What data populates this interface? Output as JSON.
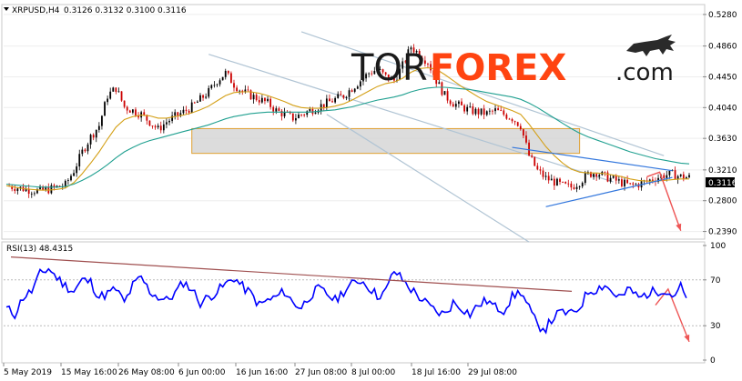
{
  "header": {
    "symbol": "XRPUSD,H4",
    "quote": "0.3126 0.3132 0.3100 0.3116",
    "current_price_tag": "0.3116"
  },
  "logo": {
    "part1": "TOR",
    "part2": "FOREX",
    "part3": ".com"
  },
  "rsi_header": "RSI(13) 48.4315",
  "colors": {
    "bull_candle": "#000000",
    "bear_candle": "#cc0000",
    "ma_fast": "#d4a017",
    "ma_slow": "#20a090",
    "rsi_line": "#0000ff",
    "rsi_trend": "#a05050",
    "channel": "#b0c4d4",
    "triangle": "#3377dd",
    "zone_fill": "#d0d0d0",
    "zone_border": "#e0a030",
    "arrow": "#ee5555",
    "logo_accent": "#ff4411"
  },
  "chart_data": [
    {
      "type": "line",
      "title": "XRPUSD,H4",
      "y_ticks": [
        "0.5280",
        "0.4860",
        "0.4450",
        "0.4040",
        "0.3630",
        "0.3210",
        "0.2800",
        "0.2390"
      ],
      "ylim": [
        0.23,
        0.54
      ],
      "x_ticks": [
        "5 May 2019",
        "15 May 16:00",
        "26 May 08:00",
        "6 Jun 00:00",
        "16 Jun 16:00",
        "27 Jun 08:00",
        "8 Jul 00:00",
        "18 Jul 16:00",
        "29 Jul 08:00"
      ],
      "series": [
        {
          "values": [
            0.3,
            0.298,
            0.296,
            0.294,
            0.293,
            0.295,
            0.298,
            0.301,
            0.32,
            0.345,
            0.365,
            0.38,
            0.42,
            0.43,
            0.405,
            0.4,
            0.395,
            0.385,
            0.375,
            0.385,
            0.392,
            0.398,
            0.405,
            0.415,
            0.425,
            0.44,
            0.45,
            0.435,
            0.425,
            0.42,
            0.415,
            0.41,
            0.4,
            0.395,
            0.39,
            0.395,
            0.4,
            0.405,
            0.41,
            0.415,
            0.42,
            0.43,
            0.44,
            0.45,
            0.455,
            0.445,
            0.44,
            0.46,
            0.485,
            0.475,
            0.465,
            0.44,
            0.42,
            0.41,
            0.405,
            0.4,
            0.398,
            0.396,
            0.4,
            0.395,
            0.39,
            0.38,
            0.34,
            0.32,
            0.31,
            0.305,
            0.3,
            0.298,
            0.305,
            0.315,
            0.318,
            0.312,
            0.308,
            0.304,
            0.3,
            0.302,
            0.306,
            0.31,
            0.314,
            0.315,
            0.312,
            0.311
          ]
        },
        {
          "name": "MA fast",
          "values": [
            0.3,
            0.298,
            0.296,
            0.295,
            0.294,
            0.294,
            0.295,
            0.297,
            0.304,
            0.316,
            0.33,
            0.345,
            0.362,
            0.378,
            0.388,
            0.392,
            0.394,
            0.393,
            0.39,
            0.39,
            0.392,
            0.394,
            0.397,
            0.401,
            0.406,
            0.413,
            0.42,
            0.424,
            0.425,
            0.425,
            0.423,
            0.42,
            0.416,
            0.412,
            0.407,
            0.404,
            0.403,
            0.403,
            0.404,
            0.406,
            0.409,
            0.414,
            0.42,
            0.426,
            0.432,
            0.436,
            0.438,
            0.443,
            0.451,
            0.456,
            0.457,
            0.455,
            0.448,
            0.44,
            0.432,
            0.425,
            0.418,
            0.412,
            0.408,
            0.404,
            0.4,
            0.395,
            0.382,
            0.367,
            0.352,
            0.34,
            0.33,
            0.322,
            0.318,
            0.317,
            0.317,
            0.316,
            0.314,
            0.312,
            0.309,
            0.307,
            0.306,
            0.306,
            0.307,
            0.308,
            0.309,
            0.309
          ]
        },
        {
          "name": "MA slow",
          "values": [
            0.302,
            0.301,
            0.3,
            0.299,
            0.298,
            0.298,
            0.298,
            0.299,
            0.302,
            0.307,
            0.313,
            0.32,
            0.328,
            0.337,
            0.345,
            0.351,
            0.356,
            0.36,
            0.363,
            0.366,
            0.369,
            0.372,
            0.375,
            0.378,
            0.381,
            0.385,
            0.389,
            0.392,
            0.394,
            0.396,
            0.397,
            0.398,
            0.398,
            0.398,
            0.398,
            0.398,
            0.398,
            0.399,
            0.4,
            0.401,
            0.403,
            0.405,
            0.408,
            0.411,
            0.414,
            0.416,
            0.418,
            0.421,
            0.425,
            0.428,
            0.43,
            0.431,
            0.431,
            0.43,
            0.429,
            0.428,
            0.426,
            0.424,
            0.422,
            0.42,
            0.418,
            0.415,
            0.41,
            0.404,
            0.397,
            0.39,
            0.383,
            0.376,
            0.37,
            0.365,
            0.361,
            0.357,
            0.353,
            0.349,
            0.345,
            0.342,
            0.339,
            0.336,
            0.334,
            0.332,
            0.33,
            0.329
          ]
        }
      ]
    },
    {
      "type": "line",
      "title": "RSI(13) 48.4315",
      "y_ticks": [
        "100",
        "70",
        "30",
        "0"
      ],
      "ylim": [
        0,
        100
      ],
      "series": [
        {
          "values": [
            45,
            40,
            55,
            60,
            75,
            80,
            72,
            65,
            60,
            70,
            68,
            55,
            58,
            62,
            50,
            65,
            72,
            60,
            55,
            52,
            58,
            68,
            62,
            50,
            55,
            60,
            66,
            72,
            64,
            58,
            48,
            52,
            55,
            60,
            50,
            46,
            56,
            62,
            58,
            52,
            60,
            66,
            70,
            64,
            56,
            60,
            78,
            70,
            62,
            55,
            48,
            42,
            40,
            50,
            46,
            40,
            48,
            52,
            46,
            44,
            55,
            60,
            45,
            30,
            28,
            38,
            42,
            40,
            46,
            60,
            62,
            66,
            58,
            55,
            62,
            54,
            58,
            60,
            62,
            56,
            64,
            48
          ]
        }
      ]
    }
  ]
}
